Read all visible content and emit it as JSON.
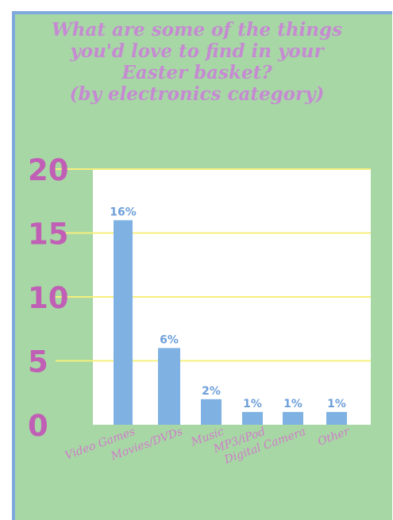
{
  "chart_data": {
    "type": "bar",
    "title_lines": [
      "What are some of the things",
      "you'd love to find in your",
      "Easter basket?",
      "(by electronics category)"
    ],
    "categories": [
      "Video Games",
      "Movies/DVDs",
      "Music",
      "MP3/iPod",
      "Digital Camera",
      "Other"
    ],
    "values": [
      16,
      6,
      2,
      1,
      1,
      1
    ],
    "data_labels": [
      "16%",
      "6%",
      "2%",
      "1%",
      "1%",
      "1%"
    ],
    "yticks": [
      0,
      5,
      10,
      15,
      20
    ],
    "ylim": [
      0,
      20
    ],
    "grid": true,
    "colors": {
      "bar": "#7fb2e3",
      "grid": "#f6ef7c",
      "plot_background": "#ffffff",
      "panel_background": "#a7d7a5",
      "title": "#c58ad2",
      "ytick": "#c05fb5",
      "data_label": "#6d9fd9",
      "xlabel": "#d07cc9"
    }
  }
}
